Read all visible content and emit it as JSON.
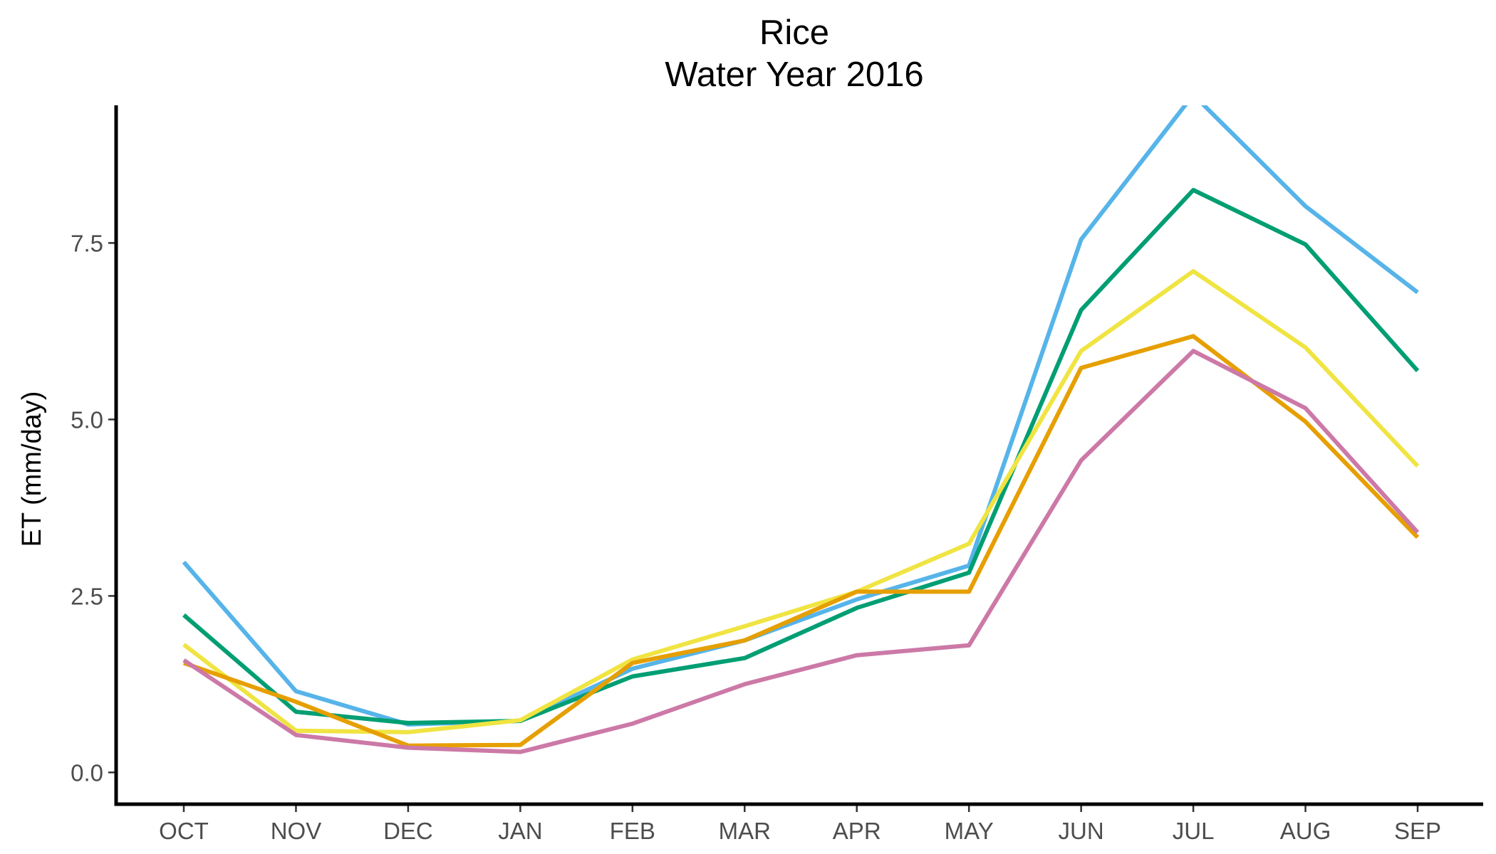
{
  "chart_data": {
    "type": "line",
    "title": "Rice",
    "subtitle": "Water Year 2016",
    "xlabel": "",
    "ylabel": "ET (mm/day)",
    "categories": [
      "OCT",
      "NOV",
      "DEC",
      "JAN",
      "FEB",
      "MAR",
      "APR",
      "MAY",
      "JUN",
      "JUL",
      "AUG",
      "SEP"
    ],
    "yticks": [
      "0.0",
      "2.5",
      "5.0",
      "7.5"
    ],
    "ytick_values": [
      0,
      2.5,
      5,
      7.5
    ],
    "ylim": [
      -0.45,
      9.45
    ],
    "grid": false,
    "legend": "none",
    "series": [
      {
        "color": "#56B4E9",
        "values": [
          2.98,
          1.15,
          0.68,
          0.73,
          1.47,
          1.87,
          2.45,
          2.93,
          7.55,
          9.6,
          8.02,
          6.8
        ]
      },
      {
        "color": "#009E73",
        "values": [
          2.23,
          0.86,
          0.7,
          0.73,
          1.36,
          1.62,
          2.33,
          2.83,
          6.55,
          8.25,
          7.48,
          5.69
        ]
      },
      {
        "color": "#F0E442",
        "values": [
          1.81,
          0.59,
          0.57,
          0.74,
          1.6,
          2.07,
          2.56,
          3.24,
          5.97,
          7.1,
          6.02,
          4.34
        ]
      },
      {
        "color": "#E69F00",
        "values": [
          1.55,
          1.0,
          0.38,
          0.39,
          1.55,
          1.87,
          2.56,
          2.56,
          5.73,
          6.18,
          4.97,
          3.33
        ]
      },
      {
        "color": "#CC79A7",
        "values": [
          1.59,
          0.53,
          0.35,
          0.29,
          0.69,
          1.25,
          1.66,
          1.8,
          4.42,
          5.97,
          5.16,
          3.4
        ]
      }
    ]
  }
}
